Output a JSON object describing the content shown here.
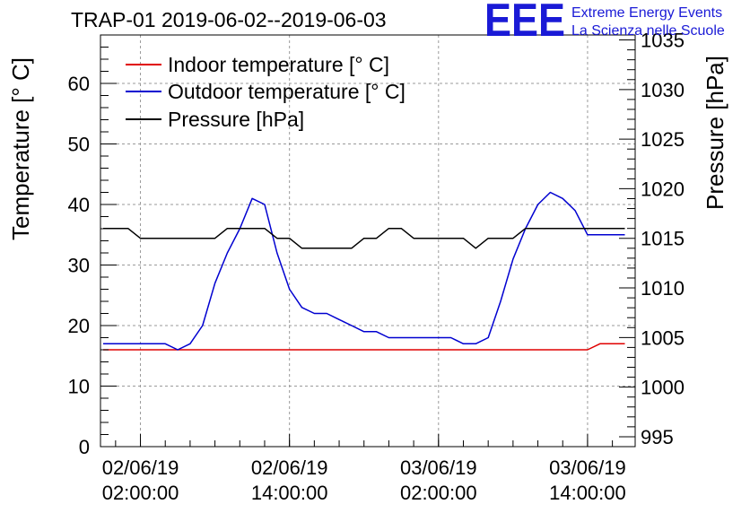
{
  "chart_data": {
    "type": "line",
    "title": "TRAP-01 2019-06-02--2019-06-03",
    "ylabel": "Temperature [° C]",
    "y2label": "Pressure [hPa]",
    "xlabel": "",
    "ylim": [
      0,
      68
    ],
    "y2lim": [
      994,
      1035.5
    ],
    "xlim": [
      "2019-06-01 22:47",
      "2019-06-03 17:50"
    ],
    "grid": true,
    "legend_position": "top-left",
    "x_ticks": [
      {
        "value": "2019-06-02 02:00:00",
        "label_date": "02/06/19",
        "label_time": "02:00:00"
      },
      {
        "value": "2019-06-02 14:00:00",
        "label_date": "02/06/19",
        "label_time": "14:00:00"
      },
      {
        "value": "2019-06-03 02:00:00",
        "label_date": "03/06/19",
        "label_time": "02:00:00"
      },
      {
        "value": "2019-06-03 14:00:00",
        "label_date": "03/06/19",
        "label_time": "14:00:00"
      }
    ],
    "y_ticks": [
      0,
      10,
      20,
      30,
      40,
      50,
      60
    ],
    "y2_ticks": [
      995,
      1000,
      1005,
      1010,
      1015,
      1020,
      1025,
      1030,
      1035
    ],
    "x": [
      "2019-06-01 23:00",
      "2019-06-02 00:00",
      "2019-06-02 01:00",
      "2019-06-02 02:00",
      "2019-06-02 03:00",
      "2019-06-02 04:00",
      "2019-06-02 05:00",
      "2019-06-02 06:00",
      "2019-06-02 07:00",
      "2019-06-02 08:00",
      "2019-06-02 09:00",
      "2019-06-02 10:00",
      "2019-06-02 11:00",
      "2019-06-02 12:00",
      "2019-06-02 13:00",
      "2019-06-02 14:00",
      "2019-06-02 15:00",
      "2019-06-02 16:00",
      "2019-06-02 17:00",
      "2019-06-02 18:00",
      "2019-06-02 19:00",
      "2019-06-02 20:00",
      "2019-06-02 21:00",
      "2019-06-02 22:00",
      "2019-06-02 23:00",
      "2019-06-03 00:00",
      "2019-06-03 01:00",
      "2019-06-03 02:00",
      "2019-06-03 03:00",
      "2019-06-03 04:00",
      "2019-06-03 05:00",
      "2019-06-03 06:00",
      "2019-06-03 07:00",
      "2019-06-03 08:00",
      "2019-06-03 09:00",
      "2019-06-03 10:00",
      "2019-06-03 11:00",
      "2019-06-03 12:00",
      "2019-06-03 13:00",
      "2019-06-03 14:00",
      "2019-06-03 15:00",
      "2019-06-03 16:00",
      "2019-06-03 17:00"
    ],
    "series": [
      {
        "name": "Indoor temperature [° C]",
        "axis": "left",
        "color": "#e00000",
        "values": [
          16,
          16,
          16,
          16,
          16,
          16,
          16,
          16,
          16,
          16,
          16,
          16,
          16,
          16,
          16,
          16,
          16,
          16,
          16,
          16,
          16,
          16,
          16,
          16,
          16,
          16,
          16,
          16,
          16,
          16,
          16,
          16,
          16,
          16,
          16,
          16,
          16,
          16,
          16,
          16,
          17,
          17,
          17
        ]
      },
      {
        "name": "Outdoor temperature [° C]",
        "axis": "left",
        "color": "#0000d0",
        "values": [
          17,
          17,
          17,
          17,
          17,
          17,
          16,
          17,
          20,
          27,
          32,
          36,
          41,
          40,
          32,
          26,
          23,
          22,
          22,
          21,
          20,
          19,
          19,
          18,
          18,
          18,
          18,
          18,
          18,
          17,
          17,
          18,
          24,
          31,
          36,
          40,
          42,
          41,
          39,
          35,
          35,
          35,
          35
        ]
      },
      {
        "name": "Pressure [hPa]",
        "axis": "right",
        "color": "#000000",
        "values": [
          1016,
          1016,
          1016,
          1015,
          1015,
          1015,
          1015,
          1015,
          1015,
          1015,
          1016,
          1016,
          1016,
          1016,
          1015,
          1015,
          1014,
          1014,
          1014,
          1014,
          1014,
          1015,
          1015,
          1016,
          1016,
          1015,
          1015,
          1015,
          1015,
          1015,
          1014,
          1015,
          1015,
          1015,
          1016,
          1016,
          1016,
          1016,
          1016,
          1016,
          1016,
          1016,
          1016
        ]
      }
    ]
  },
  "logo": {
    "letters": "EEE",
    "line1": "Extreme Energy Events",
    "line2": "La Scienza nelle Scuole"
  }
}
